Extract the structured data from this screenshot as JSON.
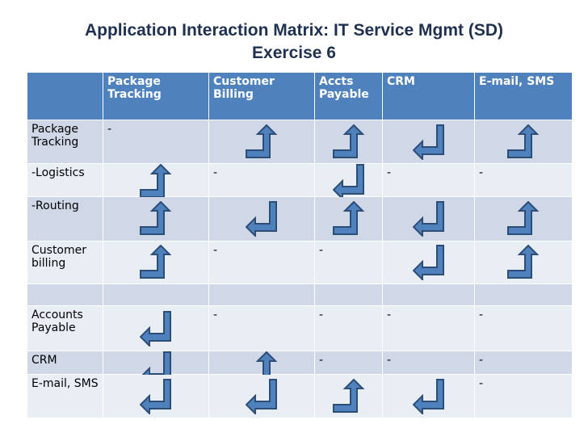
{
  "header": {
    "title": "Application Interaction Matrix:  IT Service Mgmt (SD)",
    "subtitle": "Exercise 6"
  },
  "table": {
    "columns": [
      "Package Tracking",
      "Customer Billing",
      "Accts Payable",
      "CRM",
      "E-mail, SMS"
    ],
    "rows": [
      {
        "label": "Package Tracking",
        "cells": [
          "-",
          null,
          null,
          null,
          null
        ]
      },
      {
        "label": "-Logistics",
        "cells": [
          null,
          "-",
          null,
          "-",
          "-"
        ]
      },
      {
        "label": "-Routing",
        "cells": [
          null,
          null,
          null,
          null,
          null
        ]
      },
      {
        "label": "Customer billing",
        "cells": [
          null,
          "-",
          "-",
          null,
          null
        ]
      },
      {
        "label": null,
        "cells": [
          null,
          null,
          null,
          null,
          null
        ]
      },
      {
        "label": "Accounts Payable",
        "cells": [
          null,
          "-",
          "-",
          "-",
          "-"
        ]
      },
      {
        "label": "CRM",
        "cells": [
          null,
          null,
          "-",
          "-",
          "-"
        ]
      },
      {
        "label": "E-mail, SMS",
        "cells": [
          null,
          null,
          null,
          null,
          "-"
        ]
      }
    ]
  }
}
